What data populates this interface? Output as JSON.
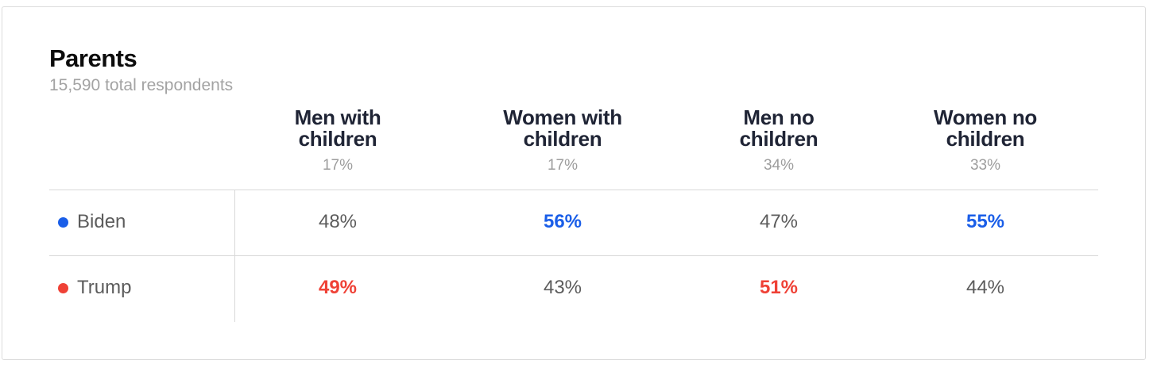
{
  "header": {
    "title": "Parents",
    "subtitle": "15,590 total respondents"
  },
  "colors": {
    "biden": "#1a5ee8",
    "trump": "#ef4136",
    "neutral_value": "#5c5c5c"
  },
  "chart_data": {
    "type": "table",
    "title": "Parents",
    "subtitle": "15,590 total respondents",
    "columns": [
      {
        "label": "Men with children",
        "label_lines": [
          "Men with",
          "children"
        ],
        "share": "17%"
      },
      {
        "label": "Women with children",
        "label_lines": [
          "Women with",
          "children"
        ],
        "share": "17%"
      },
      {
        "label": "Men no children",
        "label_lines": [
          "Men no",
          "children"
        ],
        "share": "34%"
      },
      {
        "label": "Women no children",
        "label_lines": [
          "Women no",
          "children"
        ],
        "share": "33%"
      }
    ],
    "series": [
      {
        "name": "Biden",
        "color": "#1a5ee8",
        "values": [
          48,
          56,
          47,
          55
        ],
        "display": [
          "48%",
          "56%",
          "47%",
          "55%"
        ],
        "winner": [
          false,
          true,
          false,
          true
        ]
      },
      {
        "name": "Trump",
        "color": "#ef4136",
        "values": [
          49,
          43,
          51,
          44
        ],
        "display": [
          "49%",
          "43%",
          "51%",
          "44%"
        ],
        "winner": [
          true,
          false,
          true,
          false
        ]
      }
    ]
  }
}
